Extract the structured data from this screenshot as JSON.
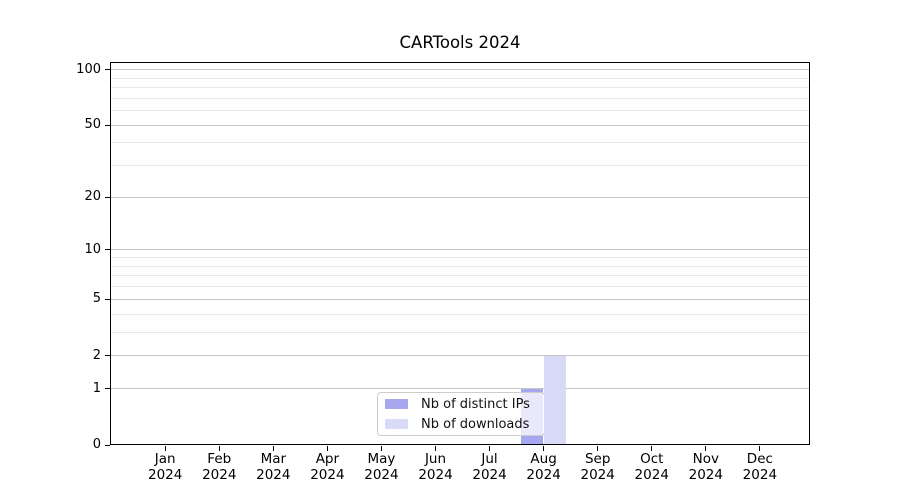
{
  "title": "CARTools 2024",
  "chart_data": {
    "type": "bar",
    "title": "CARTools 2024",
    "categories": [
      "Jan 2024",
      "Feb 2024",
      "Mar 2024",
      "Apr 2024",
      "May 2024",
      "Jun 2024",
      "Jul 2024",
      "Aug 2024",
      "Sep 2024",
      "Oct 2024",
      "Nov 2024",
      "Dec 2024"
    ],
    "series": [
      {
        "name": "Nb of distinct IPs",
        "color": "#a7a7f0",
        "values": [
          0,
          0,
          0,
          0,
          0,
          0,
          0,
          1,
          0,
          0,
          0,
          0
        ]
      },
      {
        "name": "Nb of downloads",
        "color": "#d9d9f8",
        "values": [
          0,
          0,
          0,
          0,
          0,
          0,
          0,
          2,
          0,
          0,
          0,
          0
        ]
      }
    ],
    "xlabel": "",
    "ylabel": "",
    "yscale": "log1p",
    "yticks": [
      0,
      1,
      2,
      5,
      10,
      20,
      50,
      100
    ],
    "yticks_minor": [
      3,
      4,
      6,
      7,
      8,
      9,
      30,
      40,
      60,
      70,
      80,
      90
    ],
    "ylim": [
      0,
      110
    ],
    "grid": "both",
    "grid_major_color": "#c6c6c6",
    "grid_minor_color": "#e9e9e9",
    "legend_position": "lower-center",
    "background": "#ffffff"
  }
}
